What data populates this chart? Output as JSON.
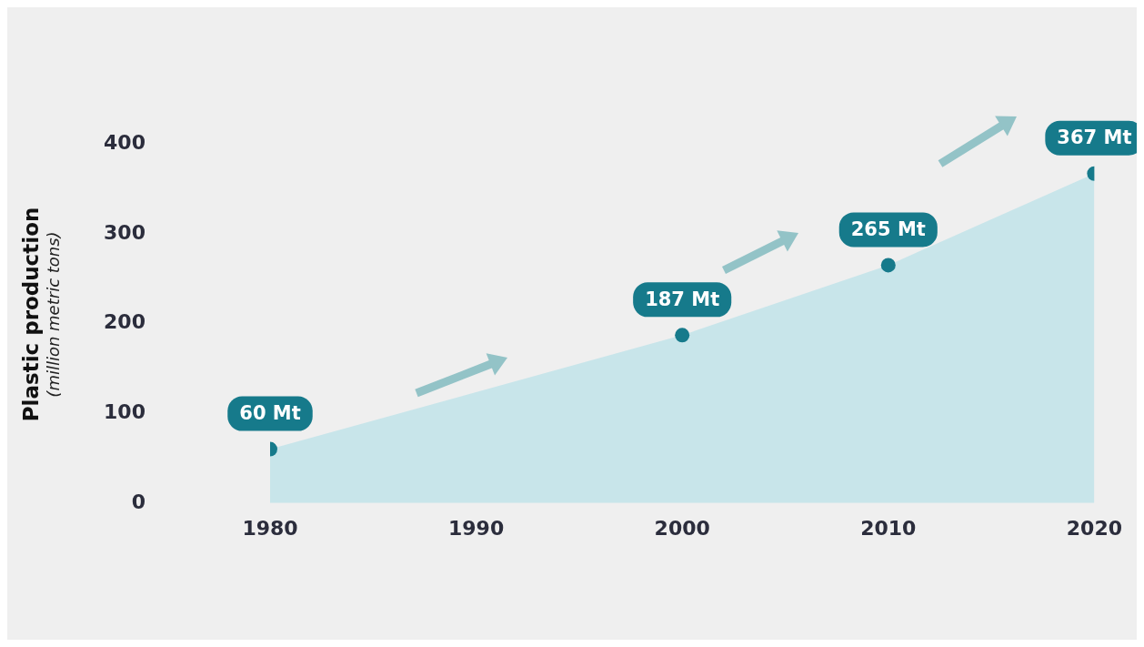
{
  "chart_data": {
    "type": "area",
    "ylabel": "Plastic production (million metric tons)",
    "x": [
      1980,
      2000,
      2010,
      2020
    ],
    "series": [
      {
        "color": "#c8e5ea",
        "values": [
          60,
          187,
          265,
          367
        ],
        "value_labels": [
          "60 Mt",
          "187 Mt",
          "265 Mt",
          "367 Mt"
        ]
      }
    ],
    "marker": "circle",
    "xlim": [
      1980,
      2020
    ],
    "xticks": [
      1980,
      1990,
      2000,
      2010,
      2020
    ],
    "ylim": [
      0,
      400
    ],
    "yticks": [
      0,
      100,
      200,
      300,
      400
    ],
    "grid": false,
    "legend": false
  }
}
